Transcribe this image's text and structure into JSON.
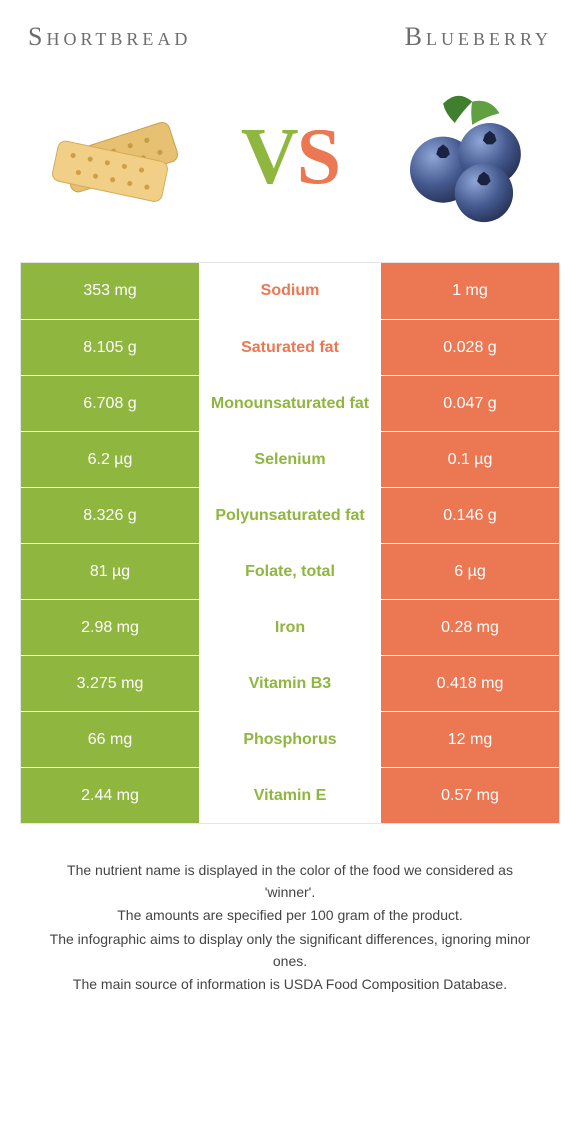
{
  "header": {
    "left_title": "Shortbread",
    "right_title": "Blueberry"
  },
  "vs": {
    "v": "V",
    "s": "S"
  },
  "colors": {
    "left_bar": "#8fb63f",
    "right_bar": "#eb7753",
    "mid_text_left_win": "#8fb63f",
    "mid_text_right_win": "#eb7753",
    "vs_v": "#8fb63f",
    "vs_s": "#eb7753"
  },
  "rows": [
    {
      "left": "353 mg",
      "label": "Sodium",
      "right": "1 mg",
      "winner": "right"
    },
    {
      "left": "8.105 g",
      "label": "Saturated fat",
      "right": "0.028 g",
      "winner": "right"
    },
    {
      "left": "6.708 g",
      "label": "Monounsaturated fat",
      "right": "0.047 g",
      "winner": "left"
    },
    {
      "left": "6.2 µg",
      "label": "Selenium",
      "right": "0.1 µg",
      "winner": "left"
    },
    {
      "left": "8.326 g",
      "label": "Polyunsaturated fat",
      "right": "0.146 g",
      "winner": "left"
    },
    {
      "left": "81 µg",
      "label": "Folate, total",
      "right": "6 µg",
      "winner": "left"
    },
    {
      "left": "2.98 mg",
      "label": "Iron",
      "right": "0.28 mg",
      "winner": "left"
    },
    {
      "left": "3.275 mg",
      "label": "Vitamin B3",
      "right": "0.418 mg",
      "winner": "left"
    },
    {
      "left": "66 mg",
      "label": "Phosphorus",
      "right": "12 mg",
      "winner": "left"
    },
    {
      "left": "2.44 mg",
      "label": "Vitamin E",
      "right": "0.57 mg",
      "winner": "left"
    }
  ],
  "footnotes": [
    "The nutrient name is displayed in the color of the food we considered as 'winner'.",
    "The amounts are specified per 100 gram of the product.",
    "The infographic aims to display only the significant differences, ignoring minor ones.",
    "The main source of information is USDA Food Composition Database."
  ]
}
